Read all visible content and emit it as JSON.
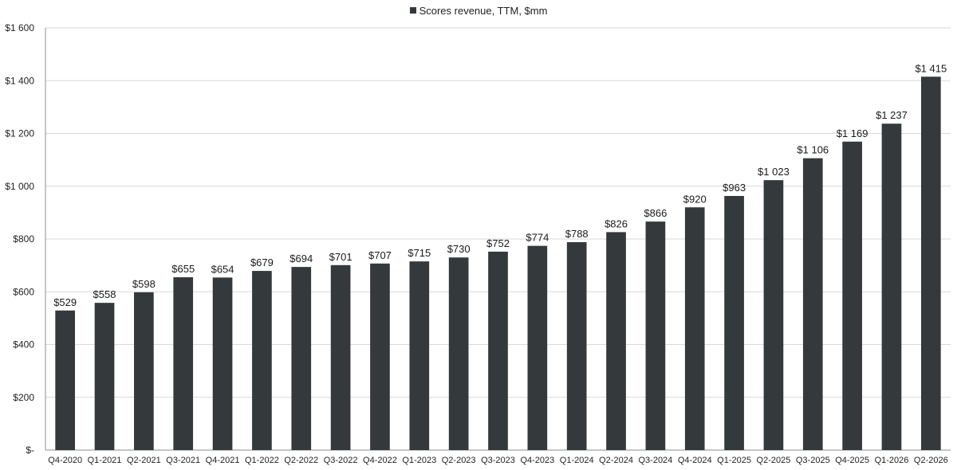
{
  "chart_data": {
    "type": "bar",
    "title": "",
    "xlabel": "",
    "ylabel": "",
    "ylim": [
      0,
      1600
    ],
    "grid": true,
    "legend_position": "top-center",
    "colors": {
      "bar": "#343a3c",
      "grid": "#d9d9d9",
      "axis": "#8c8c8c"
    },
    "yticks": [
      0,
      200,
      400,
      600,
      800,
      1000,
      1200,
      1400,
      1600
    ],
    "ytick_labels": [
      "$-",
      "$200",
      "$400",
      "$600",
      "$800",
      "$1 000",
      "$1 200",
      "$1 400",
      "$1 600"
    ],
    "categories": [
      "Q4-2020",
      "Q1-2021",
      "Q2-2021",
      "Q3-2021",
      "Q4-2021",
      "Q1-2022",
      "Q2-2022",
      "Q3-2022",
      "Q4-2022",
      "Q1-2023",
      "Q2-2023",
      "Q3-2023",
      "Q4-2023",
      "Q1-2024",
      "Q2-2024",
      "Q3-2024",
      "Q4-2024",
      "Q1-2025",
      "Q2-2025",
      "Q3-2025",
      "Q4-2025",
      "Q1-2026",
      "Q2-2026"
    ],
    "series": [
      {
        "name": "Scores revenue, TTM, $mm",
        "values": [
          529,
          558,
          598,
          655,
          654,
          679,
          694,
          701,
          707,
          715,
          730,
          752,
          774,
          788,
          826,
          866,
          920,
          963,
          1023,
          1106,
          1169,
          1237,
          1415
        ],
        "labels": [
          "$529",
          "$558",
          "$598",
          "$655",
          "$654",
          "$679",
          "$694",
          "$701",
          "$707",
          "$715",
          "$730",
          "$752",
          "$774",
          "$788",
          "$826",
          "$866",
          "$920",
          "$963",
          "$1 023",
          "$1 106",
          "$1 169",
          "$1 237",
          "$1 415"
        ]
      }
    ]
  }
}
